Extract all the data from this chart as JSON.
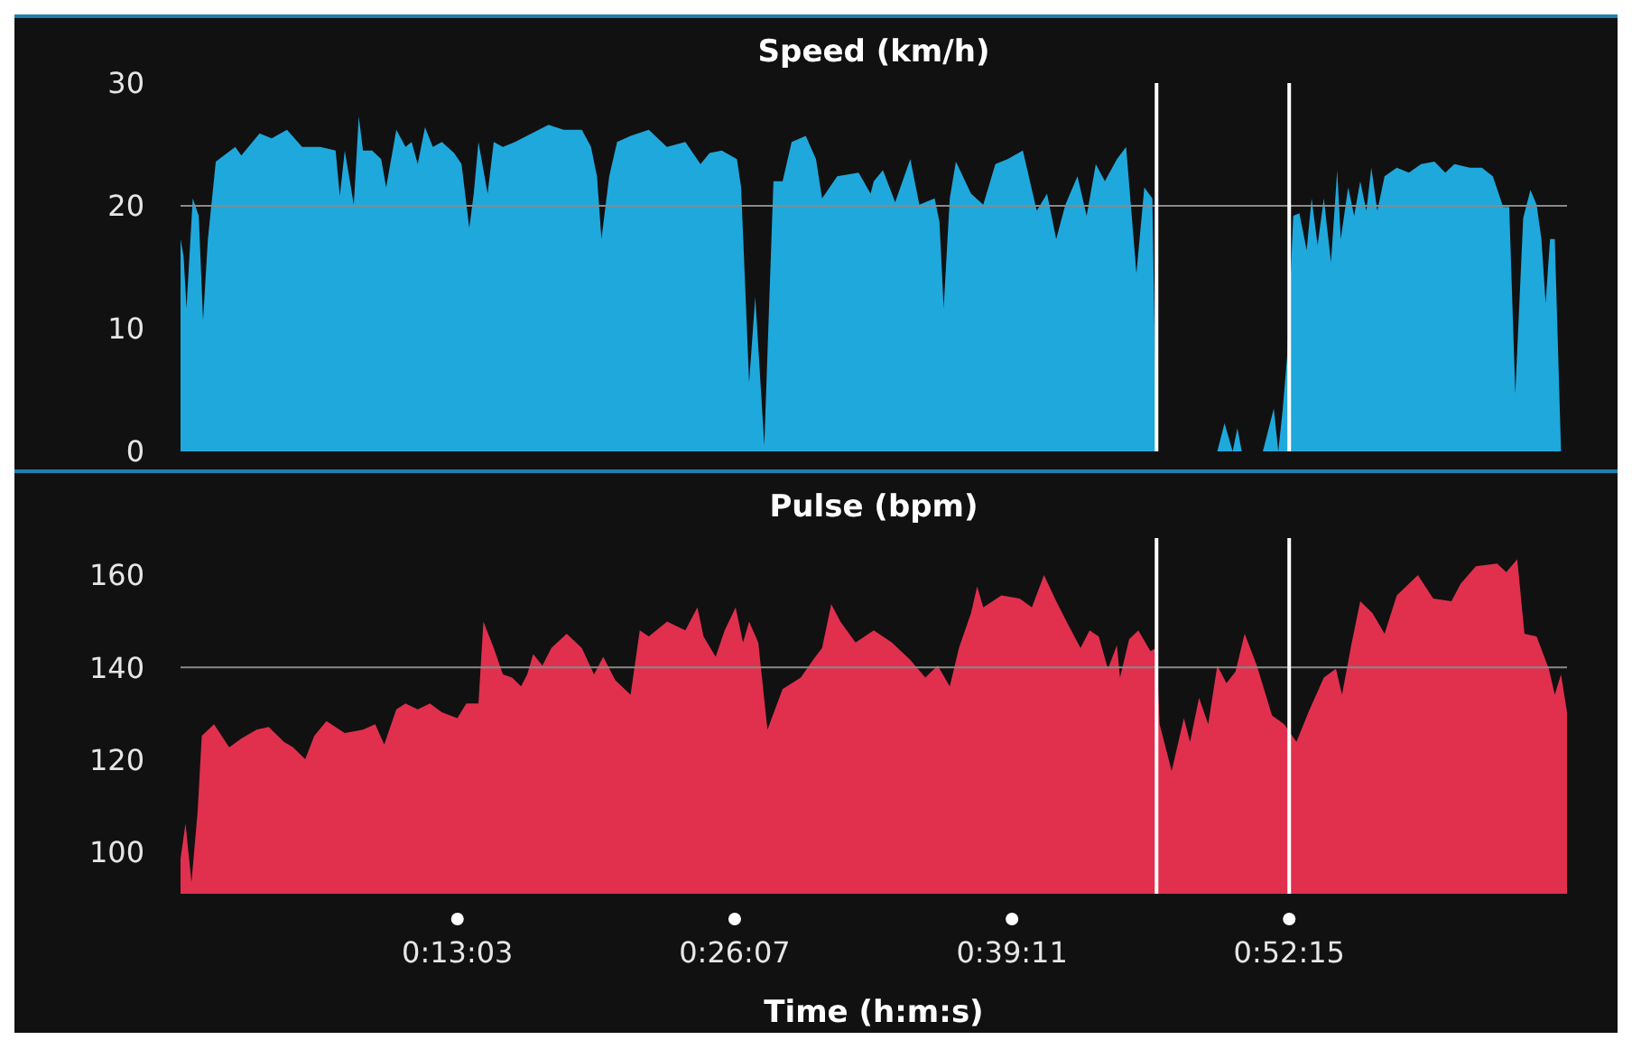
{
  "chart_data": [
    {
      "type": "area",
      "title": "Speed (km/h)",
      "color": "#1fa8dc",
      "x": [
        0,
        0.0024,
        0.0047,
        0.0096,
        0.0143,
        0.0177,
        0.0215,
        0.0277,
        0.043,
        0.0477,
        0.0621,
        0.0716,
        0.0836,
        0.0955,
        0.1099,
        0.1218,
        0.1251,
        0.129,
        0.1361,
        0.14,
        0.1433,
        0.1505,
        0.1576,
        0.1615,
        0.1695,
        0.1767,
        0.1815,
        0.1863,
        0.192,
        0.1982,
        0.2053,
        0.2149,
        0.2207,
        0.2268,
        0.2303,
        0.234,
        0.2412,
        0.246,
        0.2532,
        0.2627,
        0.289,
        0.3009,
        0.3152,
        0.3224,
        0.3271,
        0.3306,
        0.3367,
        0.3429,
        0.3535,
        0.3678,
        0.382,
        0.3965,
        0.4084,
        0.4155,
        0.4251,
        0.437,
        0.4403,
        0.4466,
        0.4514,
        0.4585,
        0.4657,
        0.4729,
        0.48,
        0.4911,
        0.4991,
        0.5039,
        0.5158,
        0.5326,
        0.542,
        0.5445,
        0.5517,
        0.5613,
        0.5732,
        0.5803,
        0.5923,
        0.5961,
        0.5994,
        0.6042,
        0.609,
        0.6209,
        0.6305,
        0.64,
        0.6496,
        0.6616,
        0.6725,
        0.6806,
        0.6878,
        0.695,
        0.7045,
        0.7117,
        0.7189,
        0.726,
        0.7355,
        0.7427,
        0.7508,
        0.757,
        0.7633,
        0.7666,
        0.78,
        0.8143,
        0.82,
        0.8264,
        0.8301,
        0.8335,
        0.84,
        0.8501,
        0.8587,
        0.8622,
        0.8656,
        0.8693,
        0.874,
        0.8788,
        0.8845,
        0.8884,
        0.8931,
        0.898,
        0.9036,
        0.9085,
        0.9113,
        0.9171,
        0.9218,
        0.9266,
        0.9314,
        0.9353,
        0.94,
        0.9457,
        0.9553,
        0.9648,
        0.9744,
        0.9849,
        0.9934,
        1.0006,
        1.0126,
        1.0221,
        1.0307,
        1.0389,
        1.0436,
        1.0484,
        1.0546,
        1.0603,
        1.0651,
        1.0689,
        1.0722,
        1.0757,
        1.0794,
        1.0843
      ],
      "values": [
        17.3,
        15.9,
        11.7,
        20.6,
        19.2,
        10.7,
        17.3,
        23.6,
        24.8,
        24.1,
        25.9,
        25.5,
        26.2,
        24.8,
        24.8,
        24.5,
        20.8,
        24.5,
        20.1,
        27.3,
        24.5,
        24.5,
        23.8,
        21.5,
        26.2,
        24.8,
        25.2,
        23.4,
        26.4,
        24.8,
        25.2,
        24.3,
        23.4,
        18.2,
        21,
        25.2,
        21,
        25.2,
        24.8,
        25.2,
        26.6,
        26.2,
        26.2,
        24.8,
        22.4,
        17.3,
        22.4,
        25.2,
        25.7,
        26.2,
        24.8,
        25.2,
        23.4,
        24.3,
        24.5,
        23.8,
        21.5,
        5.6,
        12.6,
        0.5,
        22,
        22,
        25.2,
        25.7,
        23.8,
        20.6,
        22.4,
        22.7,
        21,
        22,
        22.9,
        20.3,
        23.8,
        20.1,
        20.6,
        18.7,
        11.7,
        20.6,
        23.6,
        21,
        20.1,
        23.4,
        23.8,
        24.5,
        19.6,
        21,
        17.3,
        20.1,
        22.4,
        19.2,
        23.4,
        22,
        23.8,
        24.8,
        14.5,
        21.5,
        20.6,
        0,
        null,
        0,
        2.3,
        0,
        1.9,
        0,
        null,
        0,
        3.5,
        0,
        3.3,
        7.9,
        19.2,
        19.4,
        16.4,
        20.6,
        16.8,
        20.6,
        15.4,
        22.9,
        17.3,
        21.5,
        19.2,
        22,
        19.6,
        23.1,
        19.6,
        22.4,
        23.1,
        22.7,
        23.4,
        23.6,
        22.7,
        23.4,
        23.1,
        23.1,
        22.4,
        19.9,
        19.9,
        4.7,
        19,
        21.3,
        20.1,
        17.3,
        12.1,
        17.3,
        17.3,
        0
      ],
      "xlim": [
        0,
        1.089
      ],
      "ylim": [
        0,
        30
      ],
      "yticks": [
        0,
        10,
        20,
        30
      ],
      "tick_labels": "y",
      "ref_lines": [
        {
          "axis": "y",
          "value": 20,
          "color": "#8a8a8a"
        },
        {
          "axis": "x",
          "value": 0.7666,
          "color": "#ffffff"
        },
        {
          "axis": "x",
          "value": 0.8708,
          "color": "#ffffff"
        }
      ]
    },
    {
      "type": "area",
      "title": "Pulse (bpm)",
      "xlabel": "Time (h:m:s)",
      "color": "#e0304e",
      "x": [
        0,
        0.0039,
        0.0086,
        0.0134,
        0.0167,
        0.0263,
        0.0382,
        0.0478,
        0.0597,
        0.0693,
        0.0812,
        0.0884,
        0.0979,
        0.1051,
        0.1146,
        0.129,
        0.1433,
        0.1529,
        0.16,
        0.1695,
        0.1767,
        0.1863,
        0.1959,
        0.2053,
        0.2174,
        0.2245,
        0.234,
        0.2379,
        0.246,
        0.2532,
        0.2604,
        0.2675,
        0.2723,
        0.277,
        0.2842,
        0.2913,
        0.3033,
        0.3152,
        0.3248,
        0.332,
        0.3415,
        0.3535,
        0.3607,
        0.3678,
        0.3822,
        0.3965,
        0.406,
        0.4108,
        0.4203,
        0.4274,
        0.436,
        0.4418,
        0.4466,
        0.4538,
        0.461,
        0.4729,
        0.4872,
        0.4968,
        0.5039,
        0.5111,
        0.5183,
        0.5302,
        0.5445,
        0.5588,
        0.5732,
        0.585,
        0.5947,
        0.6042,
        0.6114,
        0.6209,
        0.6257,
        0.6305,
        0.6448,
        0.6591,
        0.6687,
        0.6782,
        0.6878,
        0.6973,
        0.7069,
        0.714,
        0.7212,
        0.7284,
        0.7355,
        0.7379,
        0.7451,
        0.7523,
        0.7618,
        0.7666,
        0.769,
        0.7785,
        0.7881,
        0.7929,
        0.8,
        0.8072,
        0.8143,
        0.8215,
        0.8286,
        0.8358,
        0.8454,
        0.8573,
        0.8669,
        0.8765,
        0.8859,
        0.898,
        0.9075,
        0.9123,
        0.9195,
        0.9266,
        0.9361,
        0.9457,
        0.9553,
        0.9719,
        0.9839,
        0.9982,
        1.0054,
        1.0174,
        1.0341,
        1.0413,
        1.0499,
        1.0556,
        1.0651,
        1.0747,
        1.0794,
        1.0843,
        1.089
      ],
      "values": [
        98.6,
        106.2,
        93.5,
        108.7,
        125.2,
        127.7,
        122.7,
        124.6,
        126.5,
        127.1,
        123.9,
        122.7,
        120.1,
        125.2,
        128.4,
        125.8,
        126.5,
        127.7,
        123.3,
        130.9,
        132.2,
        130.9,
        132.2,
        130.3,
        129,
        132.2,
        132.2,
        149.9,
        144.2,
        138.5,
        137.8,
        135.9,
        138.5,
        142.9,
        140.4,
        144.2,
        147.3,
        144.2,
        138.5,
        142.3,
        137.2,
        134.1,
        148,
        146.7,
        149.9,
        148,
        153,
        146.7,
        142.3,
        148,
        153,
        145.4,
        149.9,
        145.4,
        126.5,
        135.3,
        137.8,
        141.6,
        144.2,
        153.7,
        149.9,
        145.4,
        148,
        145.4,
        141.6,
        137.8,
        140.4,
        135.9,
        144.2,
        151.8,
        157.5,
        153,
        155.6,
        154.9,
        153,
        160,
        154.3,
        149.2,
        144.2,
        148,
        146.7,
        139.7,
        144.8,
        137.8,
        146.1,
        148,
        143.5,
        144.2,
        127.7,
        117.6,
        129,
        123.9,
        133.4,
        127.7,
        140.4,
        136.6,
        139.1,
        147.3,
        140.4,
        129.6,
        127.7,
        123.9,
        130.3,
        137.8,
        139.7,
        134.1,
        144.8,
        154.3,
        151.8,
        147.3,
        155.6,
        160,
        154.9,
        154.3,
        158.1,
        161.9,
        162.5,
        160.6,
        163.4,
        147.3,
        146.7,
        139.7,
        134.1,
        138.5,
        130.3
      ],
      "xlim": [
        0,
        1.089
      ],
      "xticks": [
        {
          "value": 0.2175,
          "label": "0:13:03"
        },
        {
          "value": 0.435278,
          "label": "0:26:07"
        },
        {
          "value": 0.653056,
          "label": "0:39:11"
        },
        {
          "value": 0.870833,
          "label": "0:52:15"
        }
      ],
      "ylim": [
        91,
        168
      ],
      "yticks": [
        100,
        120,
        140,
        160
      ],
      "ref_lines": [
        {
          "axis": "y",
          "value": 140,
          "color": "#8a8a8a"
        },
        {
          "axis": "x",
          "value": 0.7666,
          "color": "#ffffff"
        },
        {
          "axis": "x",
          "value": 0.8708,
          "color": "#ffffff"
        }
      ]
    }
  ]
}
